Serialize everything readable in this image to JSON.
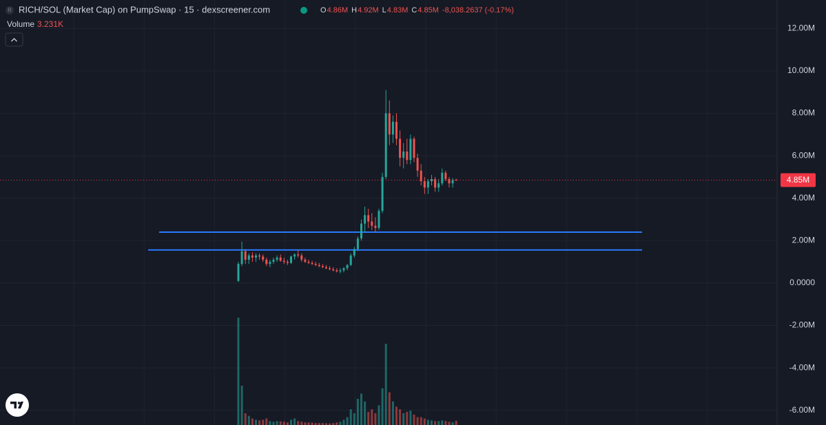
{
  "chart_data": {
    "type": "candlestick",
    "title": "RICH/SOL (Market Cap) on PumpSwap · 15 · dexscreener.com",
    "icon_letter": "R",
    "ohlc_legend": [
      {
        "key": "O",
        "value": "4.86M"
      },
      {
        "key": "H",
        "value": "4.92M"
      },
      {
        "key": "L",
        "value": "4.83M"
      },
      {
        "key": "C",
        "value": "4.85M"
      }
    ],
    "change": "-8,038.2637 (-0.17%)",
    "volume_label": "Volume",
    "volume_value_label": "3.231K",
    "up_color": "#26a69a",
    "down_color": "#ef5350",
    "open": [
      100000,
      900000,
      1500000,
      1100000,
      1300000,
      1200000,
      1300000,
      1250000,
      1100000,
      900000,
      1000000,
      1100000,
      1200000,
      1050000,
      1000000,
      950000,
      1250000,
      1350000,
      1300000,
      1100000,
      1000000,
      950000,
      900000,
      850000,
      800000,
      750000,
      700000,
      650000,
      600000,
      550000,
      600000,
      700000,
      850000,
      1300000,
      1600000,
      2100000,
      2800000,
      3200000,
      2900000,
      2700000,
      2600000,
      3400000,
      5000000,
      8000000,
      7000000,
      7600000,
      6800000,
      5900000,
      6200000,
      5800000,
      6800000,
      5900000,
      5300000,
      4800000,
      4500000,
      4800000,
      4900000,
      4500000,
      4700000,
      5200000,
      4900000,
      4700000,
      4860000
    ],
    "high": [
      1000000,
      1950000,
      1600000,
      1400000,
      1450000,
      1400000,
      1400000,
      1350000,
      1200000,
      1100000,
      1200000,
      1300000,
      1350000,
      1200000,
      1100000,
      1300000,
      1400000,
      1550000,
      1400000,
      1200000,
      1100000,
      1050000,
      1000000,
      950000,
      900000,
      850000,
      800000,
      750000,
      700000,
      700000,
      750000,
      900000,
      1400000,
      1700000,
      2200000,
      3000000,
      3600000,
      3500000,
      3300000,
      3100000,
      3500000,
      5200000,
      9100000,
      8600000,
      7900000,
      8000000,
      7200000,
      6600000,
      6800000,
      7000000,
      6900000,
      6100000,
      5600000,
      5000000,
      4900000,
      5100000,
      5000000,
      4900000,
      5400000,
      5300000,
      5000000,
      4950000,
      4920000
    ],
    "low": [
      50000,
      800000,
      900000,
      900000,
      1000000,
      1000000,
      1100000,
      1000000,
      800000,
      750000,
      900000,
      1000000,
      1000000,
      900000,
      850000,
      900000,
      1100000,
      1200000,
      1000000,
      950000,
      900000,
      850000,
      800000,
      750000,
      700000,
      650000,
      600000,
      550000,
      500000,
      450000,
      500000,
      600000,
      800000,
      1200000,
      1500000,
      2000000,
      2400000,
      2600000,
      2500000,
      2400000,
      2500000,
      3300000,
      4900000,
      6500000,
      6600000,
      6500000,
      5500000,
      5400000,
      5600000,
      5600000,
      5700000,
      5000000,
      4600000,
      4200000,
      4200000,
      4600000,
      4300000,
      4300000,
      4600000,
      4800000,
      4500000,
      4500000,
      4830000
    ],
    "close": [
      900000,
      1500000,
      1100000,
      1300000,
      1200000,
      1300000,
      1250000,
      1100000,
      900000,
      1000000,
      1100000,
      1200000,
      1050000,
      1000000,
      950000,
      1250000,
      1350000,
      1300000,
      1100000,
      1000000,
      950000,
      900000,
      850000,
      800000,
      750000,
      700000,
      650000,
      600000,
      550000,
      600000,
      700000,
      850000,
      1300000,
      1600000,
      2100000,
      2800000,
      3200000,
      2900000,
      2700000,
      2600000,
      3400000,
      5000000,
      8000000,
      7000000,
      7600000,
      6800000,
      5900000,
      6200000,
      5800000,
      6800000,
      5900000,
      5300000,
      4800000,
      4500000,
      4800000,
      4900000,
      4500000,
      4700000,
      5200000,
      4900000,
      4700000,
      4860000,
      4850000
    ],
    "volume": [
      82000,
      30000,
      9000,
      7000,
      5000,
      4000,
      3500,
      4000,
      5000,
      3000,
      2500,
      3000,
      2800,
      2500,
      2000,
      4000,
      5000,
      3000,
      2500,
      2000,
      2000,
      1800,
      1500,
      1500,
      1500,
      1400,
      1200,
      1500,
      2000,
      2500,
      4000,
      6000,
      12000,
      9000,
      20000,
      24000,
      18000,
      10000,
      12000,
      9000,
      15000,
      28000,
      62000,
      25000,
      18000,
      14000,
      12000,
      9000,
      10000,
      11000,
      8000,
      6000,
      6000,
      5000,
      4000,
      3500,
      3000,
      3000,
      3500,
      3000,
      2500,
      2000,
      3231
    ],
    "volume_ylim": [
      0,
      100000
    ],
    "ylim": [
      -6690000,
      13340000
    ],
    "yticks": [
      {
        "value": 12000000,
        "label": "12.00M"
      },
      {
        "value": 10000000,
        "label": "10.00M"
      },
      {
        "value": 8000000,
        "label": "8.00M"
      },
      {
        "value": 6000000,
        "label": "6.00M"
      },
      {
        "value": 4000000,
        "label": "4.00M"
      },
      {
        "value": 2000000,
        "label": "2.00M"
      },
      {
        "value": 0,
        "label": "0.0000"
      },
      {
        "value": -2000000,
        "label": "-2.00M"
      },
      {
        "value": -4000000,
        "label": "-4.00M"
      },
      {
        "value": -6000000,
        "label": "-6.00M"
      }
    ],
    "last_price": {
      "value": 4850000,
      "label": "4.85M"
    },
    "last_price_color": "#f23645",
    "hlines": [
      {
        "value": 2400000,
        "color": "#2979ff"
      },
      {
        "value": 1560000,
        "color": "#2979ff"
      }
    ],
    "grid": true
  }
}
